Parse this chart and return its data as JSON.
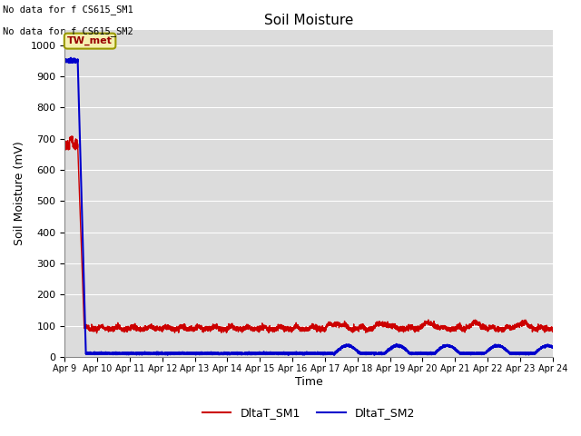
{
  "title": "Soil Moisture",
  "xlabel": "Time",
  "ylabel": "Soil Moisture (mV)",
  "ylim": [
    0,
    1050
  ],
  "yticks": [
    0,
    100,
    200,
    300,
    400,
    500,
    600,
    700,
    800,
    900,
    1000
  ],
  "plot_bg_color": "#dcdcdc",
  "fig_bg_color": "#ffffff",
  "no_data_text1": "No data for f CS615_SM1",
  "no_data_text2": "No data for f CS615_SM2",
  "tw_met_label": "TW_met",
  "sm1_color": "#cc0000",
  "sm2_color": "#0000cc",
  "legend_label1": "DltaT_SM1",
  "legend_label2": "DltaT_SM2",
  "x_start": 9.0,
  "x_end": 24.0,
  "xtick_positions": [
    9,
    10,
    11,
    12,
    13,
    14,
    15,
    16,
    17,
    18,
    19,
    20,
    21,
    22,
    23,
    24
  ],
  "xtick_labels": [
    "Apr 9",
    "Apr 10",
    "Apr 11",
    "Apr 12",
    "Apr 13",
    "Apr 14",
    "Apr 15",
    "Apr 16",
    "Apr 17",
    "Apr 18",
    "Apr 19",
    "Apr 20",
    "Apr 21",
    "Apr 22",
    "Apr 23",
    "Apr 24"
  ]
}
